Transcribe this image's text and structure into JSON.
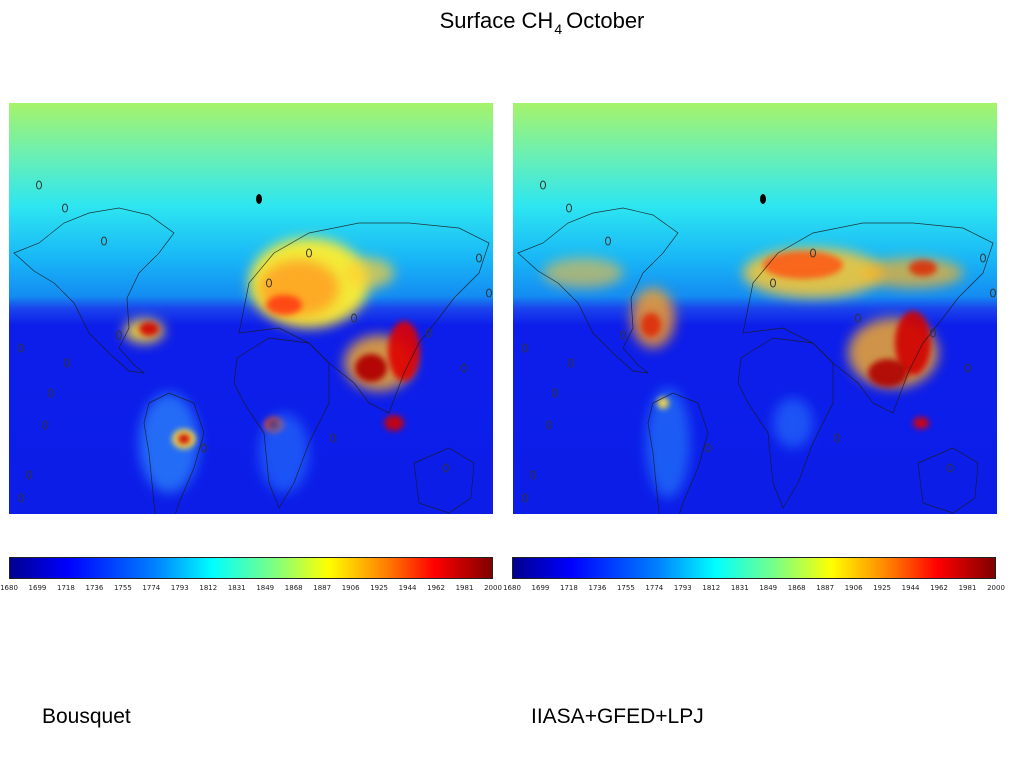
{
  "title": {
    "main": "Surface CH",
    "subscript": "4",
    "suffix": "October"
  },
  "panels": [
    {
      "id": "left",
      "caption": "Bousquet"
    },
    {
      "id": "right",
      "caption": "IIASA+GFED+LPJ"
    }
  ],
  "colorbar": {
    "colormap": "jet",
    "ticks": [
      "1680",
      "1699",
      "1718",
      "1736",
      "1755",
      "1774",
      "1793",
      "1812",
      "1831",
      "1849",
      "1868",
      "1887",
      "1906",
      "1925",
      "1944",
      "1962",
      "1981",
      "2000"
    ]
  },
  "colors": {
    "ocean_low": "#0d1eea",
    "high": "#8b0000",
    "coast": "#1a1a1a"
  }
}
